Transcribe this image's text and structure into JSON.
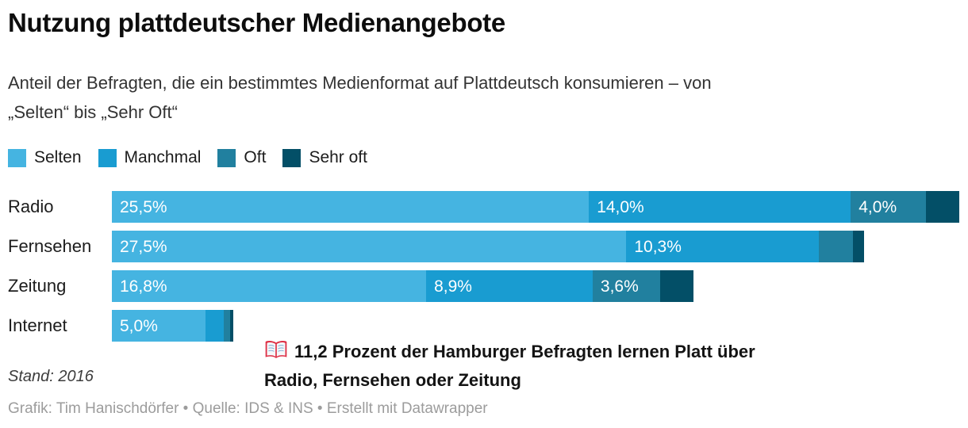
{
  "header": {
    "title": "Nutzung plattdeutscher Medienangebote",
    "subtitle_line1": "Anteil der Befragten, die ein bestimmtes Medienformat auf Plattdeutsch konsumieren – von",
    "subtitle_line2": "„Selten“ bis „Sehr Oft“"
  },
  "legend": {
    "items": [
      {
        "label": "Selten",
        "color": "#45b4e1"
      },
      {
        "label": "Manchmal",
        "color": "#199cd1"
      },
      {
        "label": "Oft",
        "color": "#21809f"
      },
      {
        "label": "Sehr oft",
        "color": "#034f67"
      }
    ]
  },
  "chart_data": {
    "type": "bar",
    "stacked": true,
    "orientation": "horizontal",
    "grid": false,
    "legend_position": "top",
    "unit": "%",
    "xlim": [
      0,
      45.3
    ],
    "categories": [
      "Radio",
      "Fernsehen",
      "Zeitung",
      "Internet"
    ],
    "series": [
      {
        "name": "Selten",
        "color": "#45b4e1",
        "values": [
          25.5,
          27.5,
          16.8,
          5.0
        ],
        "labels": [
          "25,5%",
          "27,5%",
          "16,8%",
          "5,0%"
        ]
      },
      {
        "name": "Manchmal",
        "color": "#199cd1",
        "values": [
          14.0,
          10.3,
          8.9,
          1.0
        ],
        "labels": [
          "14,0%",
          "10,3%",
          "8,9%",
          null
        ]
      },
      {
        "name": "Oft",
        "color": "#21809f",
        "values": [
          4.0,
          1.8,
          3.6,
          0.3
        ],
        "labels": [
          "4,0%",
          null,
          "3,6%",
          null
        ]
      },
      {
        "name": "Sehr oft",
        "color": "#034f67",
        "values": [
          1.8,
          0.6,
          1.8,
          0.2
        ],
        "labels": [
          null,
          null,
          null,
          null
        ]
      }
    ]
  },
  "annotation": {
    "icon": "open-book-icon",
    "line1": "11,2 Prozent der Hamburger Befragten lernen Platt über",
    "line2": "Radio, Fernsehen oder Zeitung"
  },
  "footer": {
    "stand": "Stand: 2016",
    "credits": "Grafik: Tim Hanischdörfer • Quelle: IDS & INS • Erstellt mit Datawrapper"
  }
}
